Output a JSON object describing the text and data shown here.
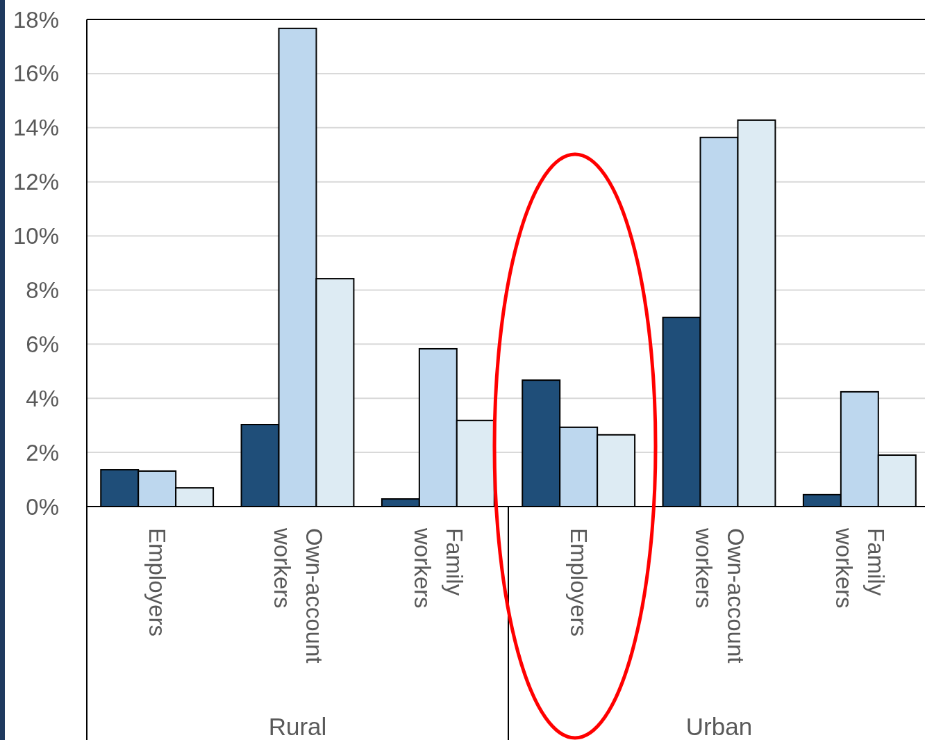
{
  "chart_data": {
    "type": "bar",
    "categories": [
      "Employers",
      "Own-account workers",
      "Family workers",
      "Employers",
      "Own-account workers",
      "Family workers"
    ],
    "series": [
      {
        "color": "#1f4e79",
        "values": [
          1.36,
          3.03,
          0.28,
          4.67,
          6.99,
          0.44
        ]
      },
      {
        "color": "#bdd7ee",
        "values": [
          1.31,
          17.67,
          5.83,
          2.93,
          13.64,
          4.24
        ]
      },
      {
        "color": "#ddebf3",
        "values": [
          0.69,
          8.42,
          3.18,
          2.65,
          14.28,
          1.9
        ]
      }
    ],
    "ylim": [
      0,
      18
    ],
    "yticks": [
      {
        "value": 0,
        "label": "0%"
      },
      {
        "value": 2,
        "label": "2%"
      },
      {
        "value": 4,
        "label": "4%"
      },
      {
        "value": 6,
        "label": "6%"
      },
      {
        "value": 8,
        "label": "8%"
      },
      {
        "value": 10,
        "label": "10%"
      },
      {
        "value": 12,
        "label": "12%"
      },
      {
        "value": 14,
        "label": "14%"
      },
      {
        "value": 16,
        "label": "16%"
      },
      {
        "value": 18,
        "label": "18%"
      }
    ],
    "annotations": [
      "Rural",
      "Urban"
    ],
    "grid": "y"
  }
}
